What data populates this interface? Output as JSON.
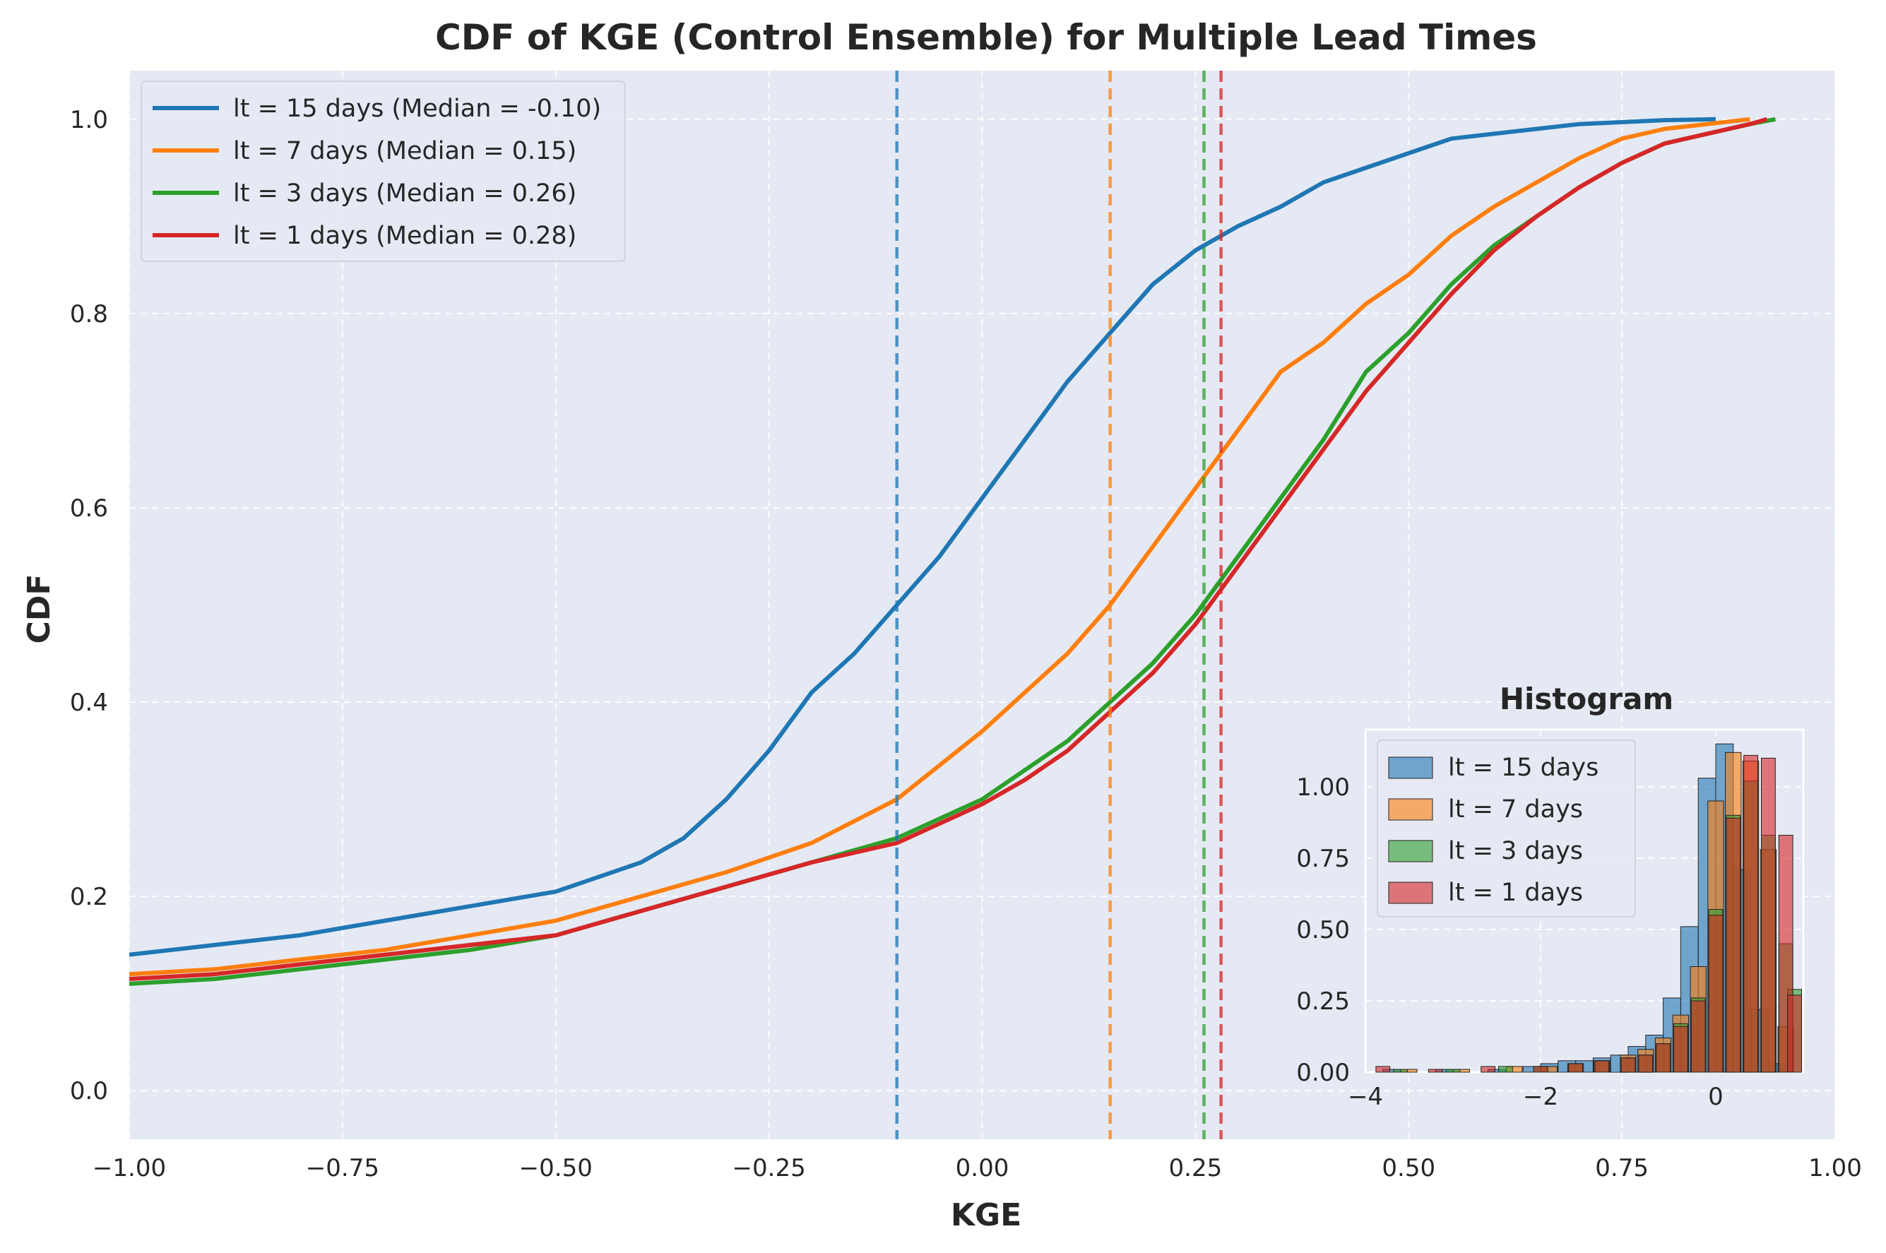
{
  "chart_data": [
    {
      "type": "line",
      "title": "CDF of KGE (Control Ensemble) for Multiple Lead Times",
      "xlabel": "KGE",
      "ylabel": "CDF",
      "xlim": [
        -1.0,
        1.0
      ],
      "ylim": [
        -0.05,
        1.05
      ],
      "x_ticks": [
        -1.0,
        -0.75,
        -0.5,
        -0.25,
        0.0,
        0.25,
        0.5,
        0.75,
        1.0
      ],
      "x_tick_labels": [
        "−1.00",
        "−0.75",
        "−0.50",
        "−0.25",
        "0.00",
        "0.25",
        "0.50",
        "0.75",
        "1.00"
      ],
      "y_ticks": [
        0.0,
        0.2,
        0.4,
        0.6,
        0.8,
        1.0
      ],
      "y_tick_labels": [
        "0.0",
        "0.2",
        "0.4",
        "0.6",
        "0.8",
        "1.0"
      ],
      "grid": true,
      "legend_position": "top-left",
      "series": [
        {
          "name": "lt = 15 days (Median = -0.10)",
          "color": "#1f77b4",
          "median": -0.1,
          "x": [
            -1.0,
            -0.9,
            -0.8,
            -0.7,
            -0.6,
            -0.5,
            -0.4,
            -0.35,
            -0.3,
            -0.25,
            -0.2,
            -0.15,
            -0.1,
            -0.05,
            0.0,
            0.05,
            0.1,
            0.15,
            0.2,
            0.25,
            0.3,
            0.35,
            0.4,
            0.45,
            0.5,
            0.55,
            0.6,
            0.65,
            0.7,
            0.8,
            0.86
          ],
          "y": [
            0.14,
            0.15,
            0.16,
            0.175,
            0.19,
            0.205,
            0.235,
            0.26,
            0.3,
            0.35,
            0.41,
            0.45,
            0.5,
            0.55,
            0.61,
            0.67,
            0.73,
            0.78,
            0.83,
            0.865,
            0.89,
            0.91,
            0.935,
            0.95,
            0.965,
            0.98,
            0.985,
            0.99,
            0.995,
            0.999,
            1.0
          ]
        },
        {
          "name": "lt = 7 days (Median = 0.15)",
          "color": "#ff7f0e",
          "median": 0.15,
          "x": [
            -1.0,
            -0.9,
            -0.8,
            -0.7,
            -0.6,
            -0.5,
            -0.4,
            -0.3,
            -0.2,
            -0.1,
            0.0,
            0.05,
            0.1,
            0.15,
            0.2,
            0.25,
            0.3,
            0.35,
            0.4,
            0.45,
            0.5,
            0.55,
            0.6,
            0.65,
            0.7,
            0.75,
            0.8,
            0.85,
            0.9
          ],
          "y": [
            0.12,
            0.125,
            0.135,
            0.145,
            0.16,
            0.175,
            0.2,
            0.225,
            0.255,
            0.3,
            0.37,
            0.41,
            0.45,
            0.5,
            0.56,
            0.62,
            0.68,
            0.74,
            0.77,
            0.81,
            0.84,
            0.88,
            0.91,
            0.935,
            0.96,
            0.98,
            0.99,
            0.995,
            1.0
          ]
        },
        {
          "name": "lt = 3 days (Median = 0.26)",
          "color": "#2ca02c",
          "median": 0.26,
          "x": [
            -1.0,
            -0.9,
            -0.8,
            -0.7,
            -0.6,
            -0.5,
            -0.4,
            -0.3,
            -0.2,
            -0.1,
            0.0,
            0.05,
            0.1,
            0.15,
            0.2,
            0.25,
            0.3,
            0.35,
            0.4,
            0.45,
            0.5,
            0.55,
            0.6,
            0.65,
            0.7,
            0.75,
            0.8,
            0.85,
            0.9,
            0.93
          ],
          "y": [
            0.11,
            0.115,
            0.125,
            0.135,
            0.145,
            0.16,
            0.185,
            0.21,
            0.235,
            0.26,
            0.3,
            0.33,
            0.36,
            0.4,
            0.44,
            0.49,
            0.55,
            0.61,
            0.67,
            0.74,
            0.78,
            0.83,
            0.87,
            0.9,
            0.93,
            0.955,
            0.975,
            0.985,
            0.995,
            1.0
          ]
        },
        {
          "name": "lt = 1 days (Median = 0.28)",
          "color": "#d62728",
          "median": 0.28,
          "x": [
            -1.0,
            -0.9,
            -0.8,
            -0.7,
            -0.6,
            -0.5,
            -0.4,
            -0.3,
            -0.2,
            -0.1,
            0.0,
            0.05,
            0.1,
            0.15,
            0.2,
            0.25,
            0.3,
            0.35,
            0.4,
            0.45,
            0.5,
            0.55,
            0.6,
            0.65,
            0.7,
            0.75,
            0.8,
            0.85,
            0.9,
            0.92
          ],
          "y": [
            0.115,
            0.12,
            0.13,
            0.14,
            0.15,
            0.16,
            0.185,
            0.21,
            0.235,
            0.255,
            0.295,
            0.32,
            0.35,
            0.39,
            0.43,
            0.48,
            0.54,
            0.6,
            0.66,
            0.72,
            0.77,
            0.82,
            0.865,
            0.9,
            0.93,
            0.955,
            0.975,
            0.985,
            0.995,
            1.0
          ]
        }
      ],
      "median_lines": [
        {
          "x": -0.1,
          "color": "#1f77b4"
        },
        {
          "x": 0.15,
          "color": "#ff7f0e"
        },
        {
          "x": 0.26,
          "color": "#2ca02c"
        },
        {
          "x": 0.28,
          "color": "#d62728"
        }
      ]
    },
    {
      "type": "bar",
      "title": "Histogram",
      "xlabel": "",
      "ylabel": "",
      "xlim": [
        -4.0,
        1.0
      ],
      "ylim": [
        0.0,
        1.2
      ],
      "x_ticks": [
        -4,
        -2,
        0
      ],
      "x_tick_labels": [
        "−4",
        "−2",
        "0"
      ],
      "y_ticks": [
        0.0,
        0.25,
        0.5,
        0.75,
        1.0
      ],
      "y_tick_labels": [
        "0.00",
        "0.25",
        "0.50",
        "0.75",
        "1.00"
      ],
      "legend_position": "top-left",
      "series": [
        {
          "name": "lt = 15 days",
          "color": "#1f77b4",
          "bin_width": 0.2,
          "bin_centers": [
            -3.7,
            -3.1,
            -2.5,
            -2.1,
            -1.9,
            -1.7,
            -1.5,
            -1.3,
            -1.1,
            -0.9,
            -0.7,
            -0.5,
            -0.3,
            -0.1,
            0.1,
            0.3,
            0.5,
            0.7
          ],
          "values": [
            0.01,
            0.01,
            0.01,
            0.02,
            0.03,
            0.04,
            0.04,
            0.05,
            0.06,
            0.09,
            0.13,
            0.26,
            0.51,
            1.03,
            1.15,
            0.71,
            0.22,
            0.03
          ]
        },
        {
          "name": "lt = 7 days",
          "color": "#ff7f0e",
          "bin_width": 0.18,
          "bin_centers": [
            -3.5,
            -2.9,
            -2.3,
            -1.9,
            -1.6,
            -1.3,
            -1.0,
            -0.8,
            -0.6,
            -0.4,
            -0.2,
            0.0,
            0.2,
            0.4,
            0.6,
            0.8
          ],
          "values": [
            0.01,
            0.01,
            0.02,
            0.02,
            0.03,
            0.04,
            0.06,
            0.08,
            0.12,
            0.2,
            0.37,
            0.95,
            1.12,
            1.09,
            0.78,
            0.16
          ]
        },
        {
          "name": "lt = 3 days",
          "color": "#2ca02c",
          "bin_width": 0.16,
          "bin_centers": [
            -3.6,
            -3.0,
            -2.4,
            -2.0,
            -1.6,
            -1.3,
            -1.0,
            -0.8,
            -0.6,
            -0.4,
            -0.2,
            0.0,
            0.2,
            0.4,
            0.6,
            0.8,
            0.9
          ],
          "values": [
            0.01,
            0.01,
            0.02,
            0.02,
            0.03,
            0.04,
            0.05,
            0.06,
            0.1,
            0.17,
            0.26,
            0.57,
            0.9,
            1.02,
            0.83,
            0.45,
            0.29
          ]
        },
        {
          "name": "lt = 1 days",
          "color": "#d62728",
          "bin_width": 0.16,
          "bin_centers": [
            -3.8,
            -3.2,
            -2.6,
            -2.0,
            -1.6,
            -1.3,
            -1.0,
            -0.8,
            -0.6,
            -0.4,
            -0.2,
            0.0,
            0.2,
            0.4,
            0.6,
            0.8,
            0.9
          ],
          "values": [
            0.02,
            0.01,
            0.02,
            0.02,
            0.03,
            0.04,
            0.05,
            0.06,
            0.1,
            0.16,
            0.25,
            0.55,
            0.89,
            1.11,
            1.1,
            0.83,
            0.27
          ]
        }
      ]
    }
  ]
}
